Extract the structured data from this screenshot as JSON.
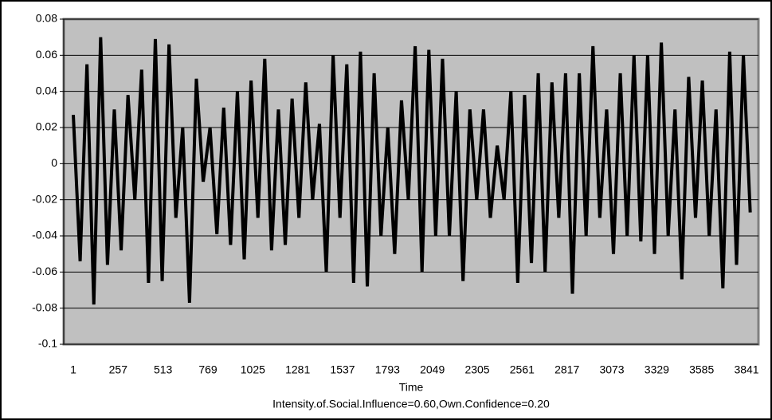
{
  "chart_data": {
    "type": "line",
    "xlabel": "Time",
    "subtitle": "Intensity.of.Social.Influence=0.60,Own.Confidence=0.20",
    "x": [
      1,
      40,
      79,
      118,
      157,
      196,
      235,
      274,
      313,
      352,
      391,
      430,
      469,
      508,
      547,
      586,
      625,
      664,
      703,
      742,
      781,
      820,
      859,
      898,
      937,
      976,
      1015,
      1054,
      1093,
      1132,
      1171,
      1210,
      1249,
      1288,
      1327,
      1366,
      1405,
      1444,
      1483,
      1522,
      1561,
      1600,
      1639,
      1678,
      1717,
      1756,
      1795,
      1834,
      1873,
      1912,
      1951,
      1990,
      2029,
      2068,
      2107,
      2146,
      2185,
      2224,
      2263,
      2302,
      2341,
      2380,
      2419,
      2458,
      2497,
      2536,
      2575,
      2614,
      2653,
      2692,
      2731,
      2770,
      2809,
      2848,
      2887,
      2926,
      2965,
      3004,
      3043,
      3082,
      3121,
      3160,
      3199,
      3238,
      3277,
      3316,
      3355,
      3394,
      3433,
      3472,
      3511,
      3550,
      3589,
      3628,
      3667,
      3706,
      3745,
      3784,
      3823,
      3862
    ],
    "values": [
      0.027,
      -0.054,
      0.055,
      -0.078,
      0.07,
      -0.056,
      0.03,
      -0.048,
      0.038,
      -0.02,
      0.052,
      -0.066,
      0.069,
      -0.065,
      0.066,
      -0.03,
      0.02,
      -0.077,
      0.047,
      -0.01,
      0.02,
      -0.039,
      0.031,
      -0.045,
      0.04,
      -0.053,
      0.046,
      -0.03,
      0.058,
      -0.048,
      0.03,
      -0.045,
      0.036,
      -0.03,
      0.045,
      -0.02,
      0.022,
      -0.06,
      0.06,
      -0.03,
      0.055,
      -0.066,
      0.062,
      -0.068,
      0.05,
      -0.04,
      0.02,
      -0.05,
      0.035,
      -0.02,
      0.065,
      -0.06,
      0.063,
      -0.04,
      0.058,
      -0.04,
      0.04,
      -0.065,
      0.03,
      -0.02,
      0.03,
      -0.03,
      0.01,
      -0.02,
      0.04,
      -0.066,
      0.038,
      -0.055,
      0.05,
      -0.06,
      0.045,
      -0.03,
      0.05,
      -0.072,
      0.05,
      -0.04,
      0.065,
      -0.03,
      0.03,
      -0.05,
      0.05,
      -0.04,
      0.06,
      -0.043,
      0.06,
      -0.05,
      0.067,
      -0.04,
      0.03,
      -0.064,
      0.048,
      -0.03,
      0.046,
      -0.04,
      0.03,
      -0.069,
      0.062,
      -0.056,
      0.06,
      -0.027
    ],
    "color": "#000000",
    "plot_background": "#c0c0c0",
    "xlim": [
      -53.5,
      3909
    ],
    "xticks": [
      1,
      257,
      513,
      769,
      1025,
      1281,
      1537,
      1793,
      2049,
      2305,
      2561,
      2817,
      3073,
      3329,
      3585,
      3841
    ],
    "ylim": [
      -0.1,
      0.08
    ],
    "yticks": [
      0.08,
      0.06,
      0.04,
      0.02,
      0,
      -0.02,
      -0.04,
      -0.06,
      -0.08,
      -0.1
    ],
    "grid": true
  }
}
